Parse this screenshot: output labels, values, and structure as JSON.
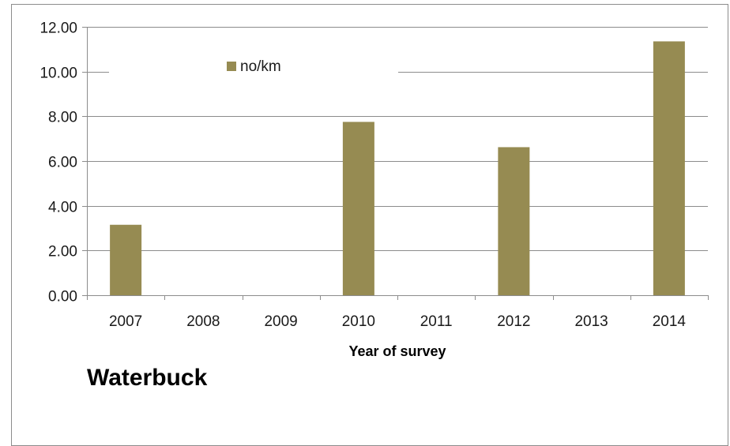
{
  "chart_data": {
    "type": "bar",
    "categories": [
      "2007",
      "2008",
      "2009",
      "2010",
      "2011",
      "2012",
      "2013",
      "2014"
    ],
    "series": [
      {
        "name": "no/km",
        "values": [
          3.15,
          0,
          0,
          7.75,
          0,
          6.62,
          0,
          11.35
        ]
      }
    ],
    "ylim": [
      0,
      12
    ],
    "yticks": [
      "0.00",
      "2.00",
      "4.00",
      "6.00",
      "8.00",
      "10.00",
      "12.00"
    ],
    "xlabel": "Year of survey",
    "ylabel": "",
    "title": "",
    "caption": "Waterbuck",
    "legend_position": "top-left",
    "grid": true,
    "colors": {
      "bar": "#968b52",
      "grid": "#8c8c8c",
      "axis": "#8c8c8c"
    }
  }
}
